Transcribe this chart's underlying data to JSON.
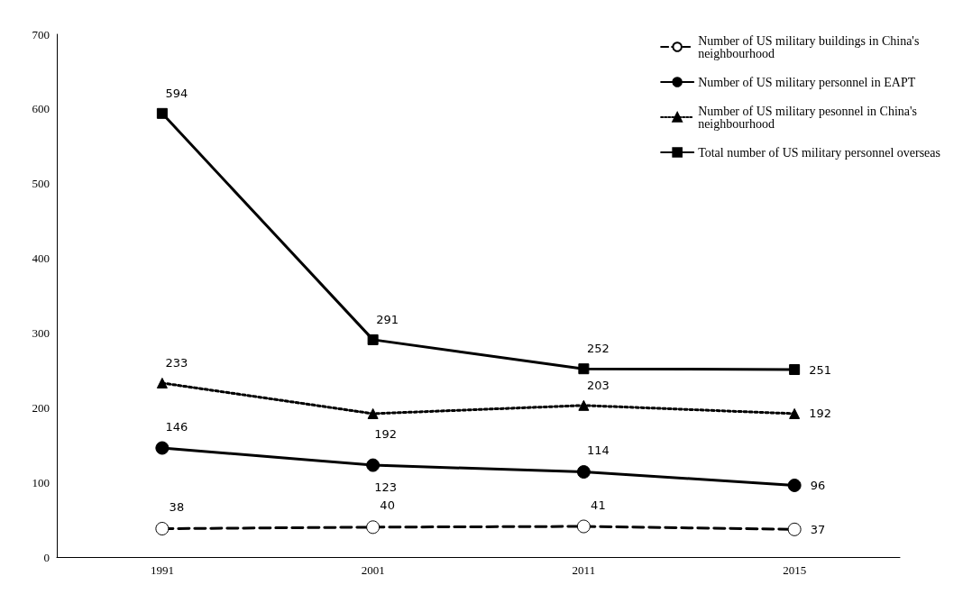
{
  "chart_data": {
    "type": "line",
    "categories": [
      "1991",
      "2001",
      "2011",
      "2015"
    ],
    "series": [
      {
        "name": "Number of US military buildings in China's neighbourhood",
        "color": "#000000",
        "values": [
          38,
          40,
          41,
          37
        ],
        "marker": "circle",
        "line_style": "dashed"
      },
      {
        "name": "Number of US military personnel in EAPT",
        "color": "#000000",
        "values": [
          146,
          123,
          114,
          96
        ],
        "marker": "circle",
        "line_style": "solid"
      },
      {
        "name": "Number of US military pesonnel in China's neighbourhood",
        "color": "#000000",
        "values": [
          233,
          192,
          203,
          192
        ],
        "marker": "triangle",
        "line_style": "dotted"
      },
      {
        "name": "Total number of US military personnel overseas",
        "color": "#000000",
        "values": [
          594,
          291,
          252,
          251
        ],
        "marker": "square",
        "line_style": "solid"
      }
    ],
    "ylim": [
      0,
      700
    ],
    "yticks": [
      0,
      100,
      200,
      300,
      400,
      500,
      600,
      700
    ],
    "grid": false,
    "legend": "top right",
    "data_labels": true
  }
}
